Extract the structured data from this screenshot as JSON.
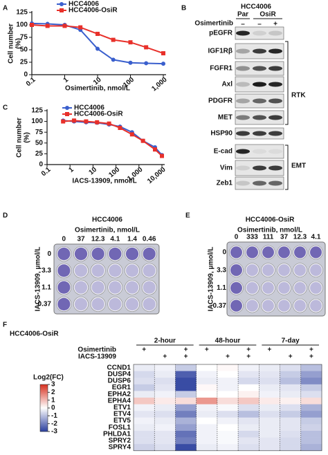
{
  "panel_labels": [
    "A",
    "B",
    "C",
    "D",
    "E",
    "F"
  ],
  "chart_data": [
    {
      "type": "line",
      "ylabel": [
        "Cell number",
        "(%)"
      ],
      "xlabel": "Osimertinib, nmol/L",
      "log_x": true,
      "x": [
        0.1,
        0.3,
        1,
        3,
        10,
        30,
        100,
        300,
        1000
      ],
      "series": [
        {
          "name": "HCC4006",
          "color": "#3a5fcd",
          "marker": "circle",
          "values": [
            103,
            102,
            100,
            90,
            52,
            30,
            24,
            23,
            22
          ]
        },
        {
          "name": "HCC4006-OsiR",
          "color": "#e8302a",
          "marker": "square",
          "values": [
            100,
            98,
            98,
            95,
            82,
            70,
            65,
            55,
            43
          ]
        }
      ],
      "xlim": [
        0.1,
        1000
      ],
      "xticks": [
        0.1,
        1,
        10,
        100,
        {
          "value": 1000,
          "label": "1,000"
        }
      ],
      "ylim": [
        0,
        125
      ],
      "yticks": [
        0,
        25,
        50,
        75,
        100,
        125
      ]
    },
    {
      "type": "line",
      "ylabel": [
        "Cell number",
        "(%)"
      ],
      "xlabel": "IACS-13909, nmol/L",
      "log_x": true,
      "x": [
        0.5,
        1.5,
        5,
        15,
        50,
        150,
        500,
        1500,
        5000,
        10000
      ],
      "series": [
        {
          "name": "HCC4006",
          "color": "#3a5fcd",
          "marker": "circle",
          "values": [
            102,
            100,
            98,
            97,
            93,
            88,
            75,
            55,
            40,
            22
          ]
        },
        {
          "name": "HCC4006-OsiR",
          "color": "#e8302a",
          "marker": "square",
          "values": [
            100,
            102,
            100,
            98,
            95,
            85,
            70,
            55,
            35,
            20
          ]
        }
      ],
      "xlim": [
        0.1,
        10000
      ],
      "xticks": [
        0.1,
        1,
        10,
        100,
        {
          "value": 1000,
          "label": "1,000"
        },
        {
          "value": 10000,
          "label": "10,000"
        }
      ],
      "ylim": [
        0,
        125
      ],
      "yticks": [
        0,
        25,
        50,
        75,
        100,
        125
      ]
    },
    {
      "type": "heatmap",
      "title": "HCC4006-OsiR",
      "groups": [
        "2-hour",
        "48-hour",
        "7-day"
      ],
      "treatments": [
        {
          "name": "Osimertinib",
          "given": [
            true,
            false,
            true
          ]
        },
        {
          "name": "IACS-13909",
          "given": [
            false,
            true,
            true
          ]
        }
      ],
      "treatment_mark": "+",
      "rows": [
        "CCND1",
        "DUSP4",
        "DUSP6",
        "EGR1",
        "EPHA2",
        "EPHA4",
        "ETV1",
        "ETV4",
        "ETV5",
        "FOSL1",
        "PHLDA1",
        "SPRY2",
        "SPRY4"
      ],
      "values": [
        [
          -0.3,
          -0.2,
          -0.8,
          0,
          0.1,
          -0.2,
          -0.3,
          -0.5,
          -1.0
        ],
        [
          -0.6,
          -0.3,
          -2.5,
          -0.2,
          0,
          -0.4,
          -0.4,
          -0.8,
          -1.5
        ],
        [
          -0.5,
          -0.5,
          -2.8,
          -0.3,
          -0.2,
          -0.6,
          -0.5,
          -1,
          -1.8
        ],
        [
          -0.8,
          -0.4,
          -2.8,
          0.1,
          -0.2,
          0,
          -0.3,
          -0.4,
          -0.8
        ],
        [
          -0.3,
          -0.2,
          -0.8,
          0,
          0,
          0.2,
          -0.2,
          -0.3,
          -0.5
        ],
        [
          0.8,
          0.3,
          0.5,
          1.5,
          0.5,
          0.8,
          0.3,
          0.2,
          0.5
        ],
        [
          -0.2,
          -0.3,
          -1.5,
          -0.2,
          -0.1,
          -0.5,
          -0.3,
          -0.5,
          -1.2
        ],
        [
          -0.4,
          -0.5,
          -2.0,
          -0.3,
          -0.5,
          -1.0,
          -0.5,
          -0.8,
          -1.5
        ],
        [
          -0.2,
          -0.3,
          -1.2,
          0,
          -0.2,
          -0.4,
          -0.3,
          -0.4,
          -0.8
        ],
        [
          -0.3,
          -0.2,
          -1.5,
          -0.2,
          0,
          -0.3,
          -0.3,
          -0.4,
          -0.7
        ],
        [
          -0.5,
          -0.4,
          -2.2,
          -0.2,
          -0.1,
          -0.6,
          -0.3,
          -0.5,
          -1
        ],
        [
          -0.5,
          -0.4,
          -2.0,
          -0.2,
          -0.1,
          -0.4,
          -0.4,
          -0.6,
          -1
        ],
        [
          -0.7,
          -0.5,
          -2.8,
          -0.3,
          -0.2,
          -0.5,
          -0.4,
          -0.6,
          -1.2
        ]
      ],
      "colorbar": {
        "title": "Log2(FC)",
        "range": [
          -3,
          3
        ],
        "ticks": [
          3,
          2,
          1,
          0,
          -1,
          -2,
          -3
        ],
        "low_color": "#2b3f9e",
        "mid_color": "#ffffff",
        "high_color": "#d7301f"
      }
    }
  ],
  "blot": {
    "title": "HCC4006",
    "groups": [
      "Par",
      "OsiR"
    ],
    "treatment": "Osimertinib",
    "treatment_marks": [
      "–",
      "–",
      "+"
    ],
    "proteins": [
      "pEGFR",
      "IGF1Rβ",
      "FGFR1",
      "Axl",
      "PDGFR",
      "MET",
      "HSP90",
      "E-cad",
      "Vim",
      "Zeb1"
    ],
    "brackets": [
      "RTK",
      "EMT"
    ]
  },
  "plates": [
    {
      "title": "HCC4006",
      "xlabel": "Osimertinib, nmol/L",
      "columns": [
        "0",
        "37",
        "12.3",
        "4.1",
        "1.4",
        "0.46"
      ],
      "ylabel": "IACS-13909, μmol/L",
      "rows": [
        "0",
        "3.3",
        "1.1",
        "0.37"
      ]
    },
    {
      "title": "HCC4006-OsiR",
      "xlabel": "Osimertinib, nmol/L",
      "columns": [
        "0",
        "333",
        "111",
        "37",
        "12.3",
        "4.1"
      ],
      "ylabel": "IACS-13909, μmol/L",
      "rows": [
        "0",
        "3.3",
        "1.1",
        "0.37"
      ]
    }
  ]
}
